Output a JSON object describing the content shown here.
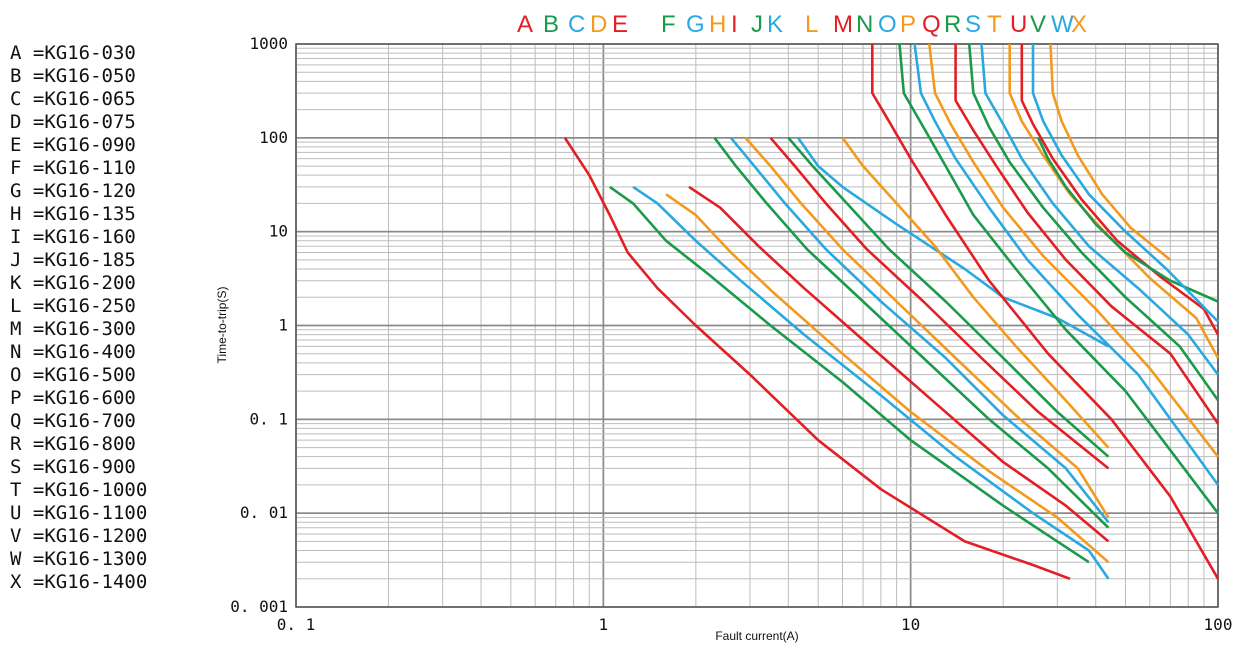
{
  "colors": {
    "red": "#e31e24",
    "green": "#1a9a4a",
    "blue": "#2aa8e0",
    "orange": "#f39a1e",
    "grid_major": "#8a8a8a",
    "grid_minor": "#bdbdbd"
  },
  "legend": [
    {
      "letter": "A",
      "text": "A =KG16-030"
    },
    {
      "letter": "B",
      "text": "B =KG16-050"
    },
    {
      "letter": "C",
      "text": "C =KG16-065"
    },
    {
      "letter": "D",
      "text": "D =KG16-075"
    },
    {
      "letter": "E",
      "text": "E =KG16-090"
    },
    {
      "letter": "F",
      "text": "F =KG16-110"
    },
    {
      "letter": "G",
      "text": "G =KG16-120"
    },
    {
      "letter": "H",
      "text": "H =KG16-135"
    },
    {
      "letter": "I",
      "text": "I =KG16-160"
    },
    {
      "letter": "J",
      "text": "J =KG16-185"
    },
    {
      "letter": "K",
      "text": "K =KG16-200"
    },
    {
      "letter": "L",
      "text": "L =KG16-250"
    },
    {
      "letter": "M",
      "text": "M =KG16-300"
    },
    {
      "letter": "N",
      "text": "N =KG16-400"
    },
    {
      "letter": "O",
      "text": "O =KG16-500"
    },
    {
      "letter": "P",
      "text": "P =KG16-600"
    },
    {
      "letter": "Q",
      "text": "Q =KG16-700"
    },
    {
      "letter": "R",
      "text": "R =KG16-800"
    },
    {
      "letter": "S",
      "text": "S =KG16-900"
    },
    {
      "letter": "T",
      "text": "T =KG16-1000"
    },
    {
      "letter": "U",
      "text": "U =KG16-1100"
    },
    {
      "letter": "V",
      "text": "V =KG16-1200"
    },
    {
      "letter": "W",
      "text": "W =KG16-1300"
    },
    {
      "letter": "X",
      "text": "X =KG16-1400"
    }
  ],
  "chart_data": {
    "type": "line",
    "xlabel": "Fault current(A)",
    "ylabel": "Time-to-trip(S)",
    "x_scale": "log",
    "y_scale": "log",
    "xlim": [
      0.1,
      100
    ],
    "ylim": [
      0.001,
      1000
    ],
    "x_ticks": [
      "0. 1",
      "1",
      "10",
      "100"
    ],
    "y_ticks": [
      "0. 001",
      "0. 01",
      "0. 1",
      "1",
      "10",
      "100",
      "1000"
    ],
    "grid": true,
    "legend_position": "left",
    "header_letters": [
      {
        "text": "A",
        "color": "red"
      },
      {
        "text": "B",
        "color": "green"
      },
      {
        "text": "C",
        "color": "blue"
      },
      {
        "text": "D",
        "color": "orange"
      },
      {
        "text": "E",
        "color": "red"
      },
      {
        "text": "F",
        "color": "green"
      },
      {
        "text": "G",
        "color": "blue"
      },
      {
        "text": "H",
        "color": "orange"
      },
      {
        "text": "I",
        "color": "red"
      },
      {
        "text": "J",
        "color": "green"
      },
      {
        "text": "K",
        "color": "blue"
      },
      {
        "text": "L",
        "color": "orange"
      },
      {
        "text": "M",
        "color": "red"
      },
      {
        "text": "N",
        "color": "green"
      },
      {
        "text": "O",
        "color": "blue"
      },
      {
        "text": "P",
        "color": "orange"
      },
      {
        "text": "Q",
        "color": "red"
      },
      {
        "text": "R",
        "color": "green"
      },
      {
        "text": "S",
        "color": "blue"
      },
      {
        "text": "T",
        "color": "orange"
      },
      {
        "text": "U",
        "color": "red"
      },
      {
        "text": "V",
        "color": "green"
      },
      {
        "text": "W",
        "color": "blue"
      },
      {
        "text": "X",
        "color": "orange"
      }
    ],
    "series": [
      {
        "color": "red",
        "points": [
          [
            0.75,
            100
          ],
          [
            0.9,
            40
          ],
          [
            1.05,
            15
          ],
          [
            1.2,
            6
          ],
          [
            1.5,
            2.5
          ],
          [
            2,
            1
          ],
          [
            3,
            0.3
          ],
          [
            5,
            0.06
          ],
          [
            8,
            0.018
          ],
          [
            15,
            0.005
          ],
          [
            25,
            0.0028
          ],
          [
            33,
            0.002
          ]
        ]
      },
      {
        "color": "green",
        "points": [
          [
            1.05,
            30
          ],
          [
            1.25,
            20
          ],
          [
            1.6,
            8
          ],
          [
            2.2,
            3.5
          ],
          [
            3.5,
            1
          ],
          [
            6,
            0.25
          ],
          [
            10,
            0.06
          ],
          [
            20,
            0.012
          ],
          [
            30,
            0.005
          ],
          [
            38,
            0.003
          ]
        ]
      },
      {
        "color": "blue",
        "points": [
          [
            1.25,
            30
          ],
          [
            1.5,
            20
          ],
          [
            2,
            8
          ],
          [
            2.8,
            3
          ],
          [
            4.5,
            0.8
          ],
          [
            8,
            0.18
          ],
          [
            14,
            0.04
          ],
          [
            25,
            0.01
          ],
          [
            38,
            0.004
          ],
          [
            44,
            0.002
          ]
        ]
      },
      {
        "color": "orange",
        "points": [
          [
            1.6,
            25
          ],
          [
            2,
            15
          ],
          [
            2.6,
            6
          ],
          [
            3.6,
            2.2
          ],
          [
            6,
            0.5
          ],
          [
            10,
            0.12
          ],
          [
            18,
            0.028
          ],
          [
            30,
            0.009
          ],
          [
            44,
            0.003
          ]
        ]
      },
      {
        "color": "red",
        "points": [
          [
            1.9,
            30
          ],
          [
            2.4,
            18
          ],
          [
            3.2,
            7
          ],
          [
            4.5,
            2.5
          ],
          [
            7,
            0.7
          ],
          [
            12,
            0.15
          ],
          [
            20,
            0.035
          ],
          [
            32,
            0.012
          ],
          [
            44,
            0.005
          ]
        ]
      },
      {
        "color": "green",
        "points": [
          [
            2.3,
            100
          ],
          [
            2.7,
            50
          ],
          [
            3.4,
            20
          ],
          [
            4.6,
            6.5
          ],
          [
            7,
            1.8
          ],
          [
            11,
            0.45
          ],
          [
            18,
            0.1
          ],
          [
            28,
            0.03
          ],
          [
            44,
            0.007
          ]
        ]
      },
      {
        "color": "blue",
        "points": [
          [
            2.6,
            100
          ],
          [
            3.1,
            50
          ],
          [
            3.9,
            20
          ],
          [
            5.3,
            6.5
          ],
          [
            8,
            1.8
          ],
          [
            13,
            0.45
          ],
          [
            20,
            0.11
          ],
          [
            32,
            0.03
          ],
          [
            44,
            0.008
          ]
        ]
      },
      {
        "color": "orange",
        "points": [
          [
            2.9,
            100
          ],
          [
            3.5,
            50
          ],
          [
            4.4,
            20
          ],
          [
            6,
            6.5
          ],
          [
            9,
            1.8
          ],
          [
            14,
            0.45
          ],
          [
            22,
            0.11
          ],
          [
            35,
            0.03
          ],
          [
            44,
            0.009
          ]
        ]
      },
      {
        "color": "red",
        "points": [
          [
            3.5,
            100
          ],
          [
            4.2,
            50
          ],
          [
            5.3,
            20
          ],
          [
            7.2,
            6.5
          ],
          [
            11,
            1.8
          ],
          [
            17,
            0.45
          ],
          [
            26,
            0.12
          ],
          [
            44,
            0.03
          ]
        ]
      },
      {
        "color": "green",
        "points": [
          [
            4,
            100
          ],
          [
            4.8,
            50
          ],
          [
            6.2,
            20
          ],
          [
            8.5,
            6.5
          ],
          [
            13,
            1.8
          ],
          [
            20,
            0.45
          ],
          [
            30,
            0.12
          ],
          [
            44,
            0.04
          ]
        ]
      },
      {
        "color": "blue",
        "points": [
          [
            4.3,
            100
          ],
          [
            5,
            50
          ],
          [
            6,
            30
          ],
          [
            9,
            12
          ],
          [
            15,
            4
          ],
          [
            20,
            2
          ],
          [
            30,
            1.2
          ],
          [
            44,
            0.6
          ]
        ]
      },
      {
        "color": "orange",
        "points": [
          [
            6,
            100
          ],
          [
            7,
            50
          ],
          [
            9,
            20
          ],
          [
            12,
            7
          ],
          [
            16,
            2
          ],
          [
            22,
            0.6
          ],
          [
            30,
            0.2
          ],
          [
            44,
            0.05
          ]
        ]
      },
      {
        "color": "red",
        "points": [
          [
            7.5,
            1000
          ],
          [
            7.5,
            300
          ],
          [
            8.5,
            150
          ],
          [
            10,
            60
          ],
          [
            13,
            15
          ],
          [
            18,
            3
          ],
          [
            28,
            0.5
          ],
          [
            45,
            0.1
          ],
          [
            70,
            0.015
          ],
          [
            100,
            0.002
          ]
        ]
      },
      {
        "color": "green",
        "points": [
          [
            9.2,
            1000
          ],
          [
            9.5,
            300
          ],
          [
            11,
            130
          ],
          [
            13,
            50
          ],
          [
            16,
            15
          ],
          [
            22,
            4
          ],
          [
            32,
            0.9
          ],
          [
            50,
            0.2
          ],
          [
            100,
            0.01
          ]
        ]
      },
      {
        "color": "blue",
        "points": [
          [
            10.3,
            1000
          ],
          [
            10.8,
            300
          ],
          [
            12,
            150
          ],
          [
            14,
            60
          ],
          [
            18,
            18
          ],
          [
            24,
            5
          ],
          [
            35,
            1.3
          ],
          [
            55,
            0.3
          ],
          [
            100,
            0.02
          ]
        ]
      },
      {
        "color": "orange",
        "points": [
          [
            11.5,
            1000
          ],
          [
            12,
            300
          ],
          [
            13.5,
            140
          ],
          [
            16,
            55
          ],
          [
            20,
            18
          ],
          [
            27,
            5.5
          ],
          [
            40,
            1.5
          ],
          [
            60,
            0.35
          ],
          [
            100,
            0.04
          ]
        ]
      },
      {
        "color": "red",
        "points": [
          [
            14,
            1000
          ],
          [
            14,
            250
          ],
          [
            16,
            120
          ],
          [
            19,
            50
          ],
          [
            24,
            16
          ],
          [
            32,
            5
          ],
          [
            45,
            1.6
          ],
          [
            70,
            0.5
          ],
          [
            100,
            0.09
          ]
        ]
      },
      {
        "color": "green",
        "points": [
          [
            15.5,
            1000
          ],
          [
            16,
            300
          ],
          [
            18,
            130
          ],
          [
            21,
            55
          ],
          [
            27,
            18
          ],
          [
            36,
            6
          ],
          [
            50,
            2
          ],
          [
            75,
            0.6
          ],
          [
            100,
            0.16
          ]
        ]
      },
      {
        "color": "blue",
        "points": [
          [
            17,
            1000
          ],
          [
            17.5,
            300
          ],
          [
            20,
            140
          ],
          [
            23,
            60
          ],
          [
            29,
            20
          ],
          [
            38,
            7
          ],
          [
            55,
            2.5
          ],
          [
            80,
            0.8
          ],
          [
            100,
            0.3
          ]
        ]
      },
      {
        "color": "orange",
        "points": [
          [
            21,
            1000
          ],
          [
            21,
            300
          ],
          [
            23,
            150
          ],
          [
            27,
            65
          ],
          [
            33,
            25
          ],
          [
            44,
            9
          ],
          [
            60,
            3.2
          ],
          [
            85,
            1.2
          ],
          [
            100,
            0.45
          ]
        ]
      },
      {
        "color": "red",
        "points": [
          [
            23,
            1000
          ],
          [
            23,
            250
          ],
          [
            25,
            140
          ],
          [
            29,
            60
          ],
          [
            36,
            22
          ],
          [
            47,
            8
          ],
          [
            65,
            3.3
          ],
          [
            90,
            1.5
          ],
          [
            100,
            0.8
          ]
        ]
      },
      {
        "color": "green",
        "points": [
          [
            26,
            100
          ],
          [
            28,
            60
          ],
          [
            32,
            30
          ],
          [
            40,
            12
          ],
          [
            50,
            6
          ],
          [
            70,
            3
          ],
          [
            100,
            1.8
          ]
        ]
      },
      {
        "color": "blue",
        "points": [
          [
            25,
            1000
          ],
          [
            25,
            300
          ],
          [
            27,
            150
          ],
          [
            31,
            65
          ],
          [
            38,
            25
          ],
          [
            50,
            10
          ],
          [
            68,
            4
          ],
          [
            100,
            1.1
          ]
        ]
      },
      {
        "color": "orange",
        "points": [
          [
            28.5,
            1000
          ],
          [
            29,
            300
          ],
          [
            31,
            150
          ],
          [
            35,
            65
          ],
          [
            42,
            25
          ],
          [
            52,
            11
          ],
          [
            70,
            5
          ]
        ]
      }
    ]
  }
}
